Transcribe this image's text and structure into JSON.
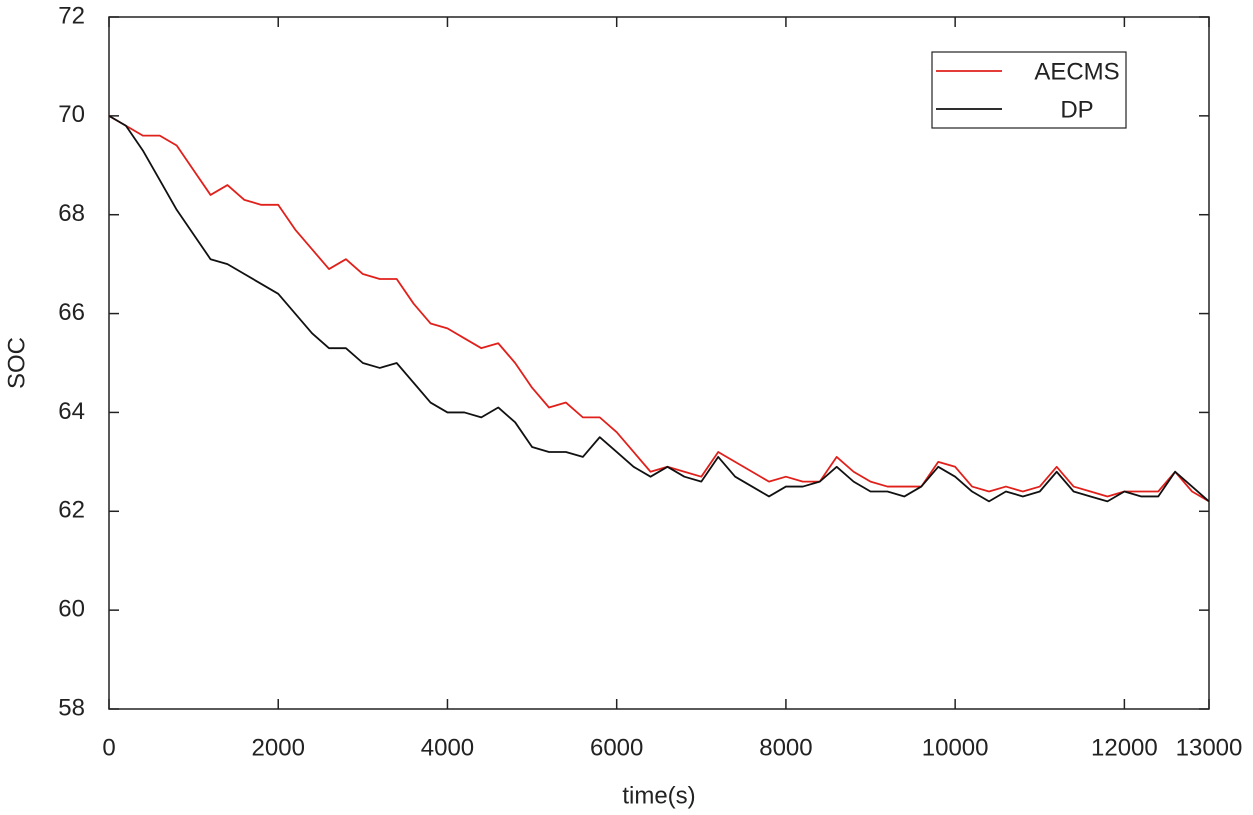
{
  "chart_data": {
    "type": "line",
    "x_label": "time(s)",
    "y_label": "SOC",
    "x": [
      0,
      200,
      400,
      600,
      800,
      1000,
      1200,
      1400,
      1600,
      1800,
      2000,
      2200,
      2400,
      2600,
      2800,
      3000,
      3200,
      3400,
      3600,
      3800,
      4000,
      4200,
      4400,
      4600,
      4800,
      5000,
      5200,
      5400,
      5600,
      5800,
      6000,
      6200,
      6400,
      6600,
      6800,
      7000,
      7200,
      7400,
      7600,
      7800,
      8000,
      8200,
      8400,
      8600,
      8800,
      9000,
      9200,
      9400,
      9600,
      9800,
      10000,
      10200,
      10400,
      10600,
      10800,
      11000,
      11200,
      11400,
      11600,
      11800,
      12000,
      12200,
      12400,
      12600,
      12800,
      13000
    ],
    "series": [
      {
        "name": "AECMS",
        "color": "#e0201b",
        "values": [
          70,
          69.8,
          69.6,
          69.6,
          69.4,
          68.9,
          68.4,
          68.6,
          68.3,
          68.2,
          68.2,
          67.7,
          67.3,
          66.9,
          67.1,
          66.8,
          66.7,
          66.7,
          66.2,
          65.8,
          65.7,
          65.5,
          65.3,
          65.4,
          65.0,
          64.5,
          64.1,
          64.2,
          63.9,
          63.9,
          63.6,
          63.2,
          62.8,
          62.9,
          62.8,
          62.7,
          63.2,
          63.0,
          62.8,
          62.6,
          62.7,
          62.6,
          62.6,
          63.1,
          62.8,
          62.6,
          62.5,
          62.5,
          62.5,
          63.0,
          62.9,
          62.5,
          62.4,
          62.5,
          62.4,
          62.5,
          62.9,
          62.5,
          62.4,
          62.3,
          62.4,
          62.4,
          62.4,
          62.8,
          62.4,
          62.2
        ]
      },
      {
        "name": "DP",
        "color": "#111111",
        "values": [
          70,
          69.8,
          69.3,
          68.7,
          68.1,
          67.6,
          67.1,
          67.0,
          66.8,
          66.6,
          66.4,
          66.0,
          65.6,
          65.3,
          65.3,
          65.0,
          64.9,
          65.0,
          64.6,
          64.2,
          64.0,
          64.0,
          63.9,
          64.1,
          63.8,
          63.3,
          63.2,
          63.2,
          63.1,
          63.5,
          63.2,
          62.9,
          62.7,
          62.9,
          62.7,
          62.6,
          63.1,
          62.7,
          62.5,
          62.3,
          62.5,
          62.5,
          62.6,
          62.9,
          62.6,
          62.4,
          62.4,
          62.3,
          62.5,
          62.9,
          62.7,
          62.4,
          62.2,
          62.4,
          62.3,
          62.4,
          62.8,
          62.4,
          62.3,
          62.2,
          62.4,
          62.3,
          62.3,
          62.8,
          62.5,
          62.2
        ]
      }
    ],
    "xlim": [
      0,
      13000
    ],
    "xticks": [
      0,
      2000,
      4000,
      6000,
      8000,
      10000,
      12000,
      13000
    ],
    "ylim": [
      58,
      72
    ],
    "yticks": [
      58,
      60,
      62,
      64,
      66,
      68,
      70,
      72
    ],
    "grid": false,
    "legend": "upper right"
  }
}
